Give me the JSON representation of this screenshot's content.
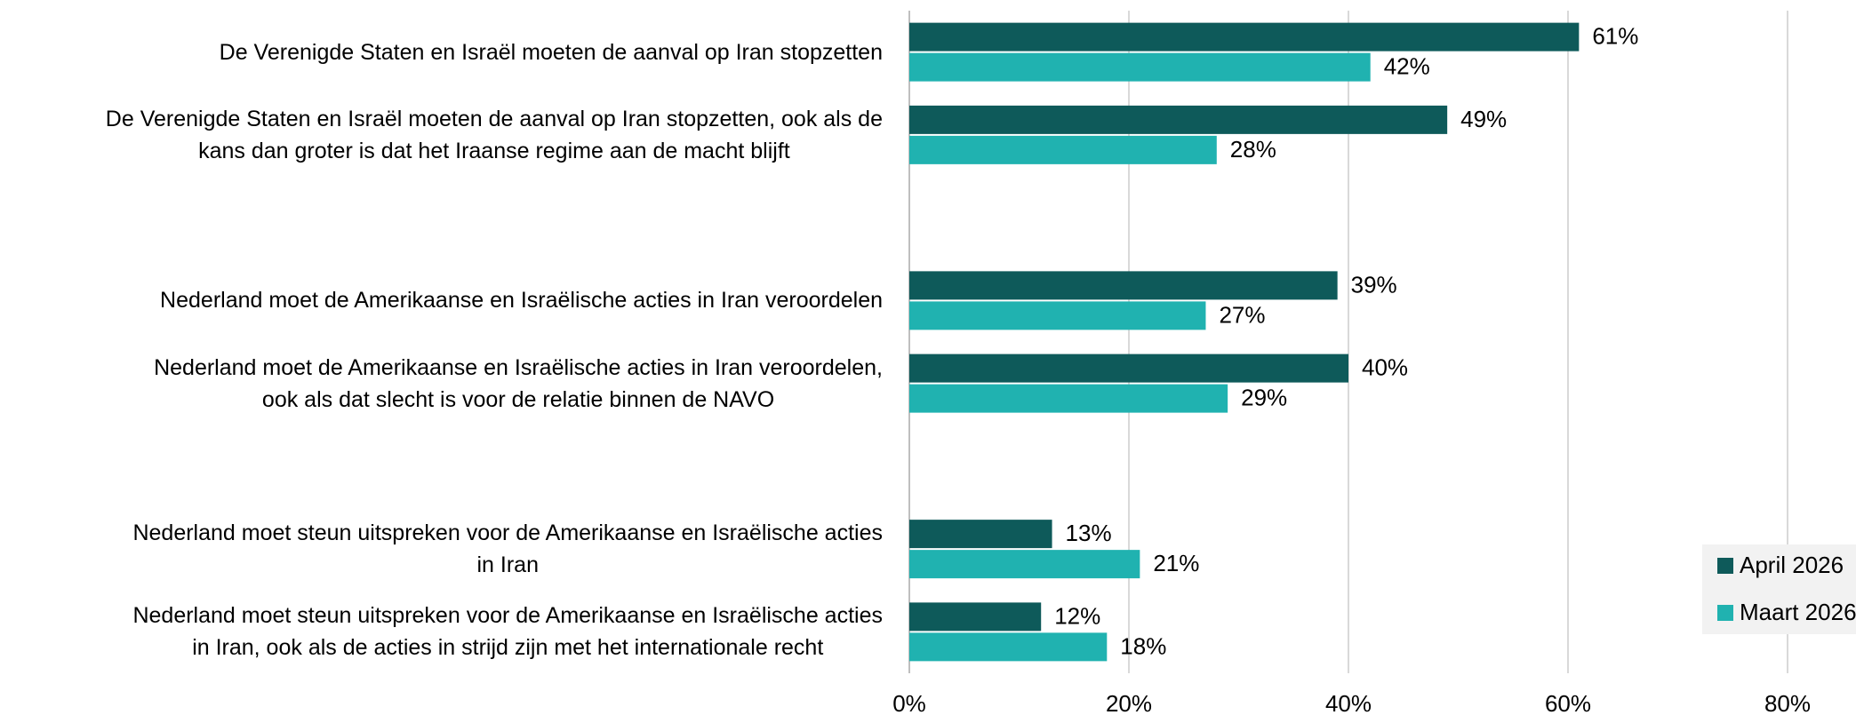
{
  "chart_data": {
    "type": "hbar",
    "categories": [
      "De Verenigde Staten en Israël moeten de aanval op Iran stopzetten",
      "De Verenigde Staten en Israël moeten de aanval op Iran stopzetten, ook als de\nkans dan groter is dat het Iraanse regime aan de macht blijft",
      null,
      "Nederland moet de Amerikaanse en Israëlische acties in Iran veroordelen",
      "Nederland moet de Amerikaanse en Israëlische acties in Iran veroordelen,\nook als dat slecht is voor de relatie binnen de NAVO",
      null,
      "Nederland moet steun uitspreken voor de Amerikaanse en Israëlische acties\nin Iran",
      "Nederland moet steun uitspreken voor de Amerikaanse en Israëlische acties\nin Iran, ook als de acties in strijd zijn met het internationale recht"
    ],
    "series": [
      {
        "name": "April 2026",
        "color": "#0e5a5a",
        "values": [
          61,
          49,
          null,
          39,
          40,
          null,
          13,
          12
        ],
        "value_labels": [
          "61%",
          "49%",
          null,
          "39%",
          "40%",
          null,
          "13%",
          "12%"
        ]
      },
      {
        "name": "Maart 2026",
        "color": "#20b2b0",
        "values": [
          42,
          28,
          null,
          27,
          29,
          null,
          21,
          18
        ],
        "value_labels": [
          "42%",
          "28%",
          null,
          "27%",
          "29%",
          null,
          "21%",
          "18%"
        ]
      }
    ],
    "xlim": [
      0,
      80
    ],
    "xticks": [
      {
        "value": 0,
        "label": "0%"
      },
      {
        "value": 20,
        "label": "20%"
      },
      {
        "value": 40,
        "label": "40%"
      },
      {
        "value": 60,
        "label": "60%"
      },
      {
        "value": 80,
        "label": "80%"
      }
    ],
    "grid": true,
    "legend": "right"
  }
}
